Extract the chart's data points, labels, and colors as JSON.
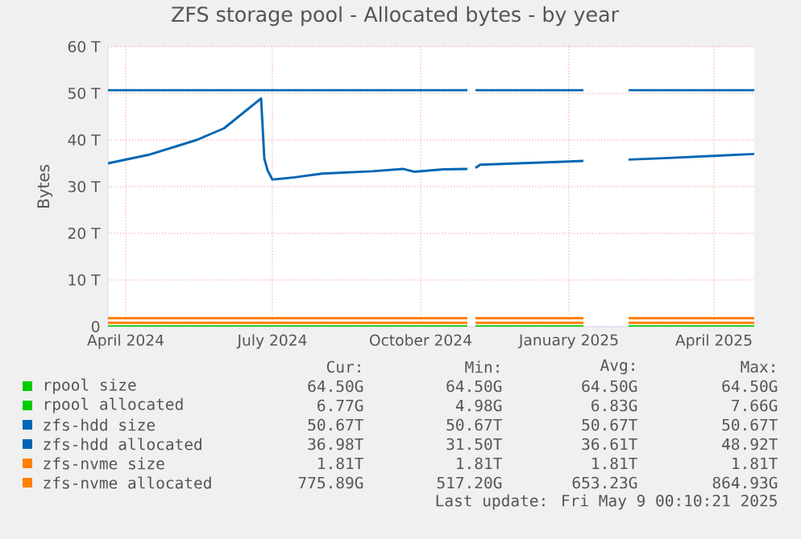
{
  "chart_data": {
    "type": "line",
    "title": "ZFS storage pool - Allocated bytes - by year",
    "ylabel": "Bytes",
    "xlim": [
      "2024-03-21",
      "2025-04-26"
    ],
    "ylim": [
      0,
      60
    ],
    "xticks": [
      {
        "value": "2024-04-01",
        "label": "April 2024"
      },
      {
        "value": "2024-07-01",
        "label": "July 2024"
      },
      {
        "value": "2024-10-01",
        "label": "October 2024"
      },
      {
        "value": "2025-01-01",
        "label": "January 2025"
      },
      {
        "value": "2025-04-01",
        "label": "April 2025"
      }
    ],
    "yticks": [
      0,
      {
        "value": 10,
        "label": "10 T"
      },
      {
        "value": 20,
        "label": "20 T"
      },
      {
        "value": 30,
        "label": "30 T"
      },
      {
        "value": 40,
        "label": "40 T"
      },
      {
        "value": 50,
        "label": "50 T"
      },
      {
        "value": 60,
        "label": "60 T"
      }
    ],
    "grid": true,
    "legend": "bottom",
    "marker": "none",
    "line_style": "solid",
    "series": [
      {
        "name": "rpool size",
        "color": "#00cc00",
        "x": [
          "2024-03-21",
          "2024-10-30",
          "2024-11-01",
          "2024-11-04",
          "2025-01-10",
          "2025-01-20",
          "2025-02-07",
          "2025-04-26"
        ],
        "values": [
          0.06,
          0.06,
          null,
          0.06,
          0.06,
          null,
          0.06,
          0.06
        ]
      },
      {
        "name": "rpool allocated",
        "color": "#00cc00",
        "x": [
          "2024-03-21",
          "2024-10-30",
          "2024-11-01",
          "2024-11-04",
          "2025-01-10",
          "2025-01-20",
          "2025-02-07",
          "2025-04-26"
        ],
        "values": [
          0.01,
          0.01,
          null,
          0.01,
          0.01,
          null,
          0.01,
          0.01
        ]
      },
      {
        "name": "zfs-hdd size",
        "color": "#0066b3",
        "x": [
          "2024-03-21",
          "2024-10-30",
          "2024-11-01",
          "2024-11-04",
          "2025-01-10",
          "2025-01-20",
          "2025-02-07",
          "2025-04-26"
        ],
        "values": [
          50.67,
          50.67,
          null,
          50.67,
          50.67,
          null,
          50.67,
          50.67
        ]
      },
      {
        "name": "zfs-hdd allocated",
        "color": "#0066b3",
        "x": [
          "2024-03-21",
          "2024-04-15",
          "2024-05-15",
          "2024-06-01",
          "2024-06-24",
          "2024-06-26",
          "2024-06-28",
          "2024-07-01",
          "2024-07-15",
          "2024-08-01",
          "2024-09-01",
          "2024-09-20",
          "2024-09-27",
          "2024-10-15",
          "2024-10-30",
          "2024-11-01",
          "2024-11-04",
          "2024-11-07",
          "2024-12-01",
          "2025-01-01",
          "2025-01-10",
          "2025-01-20",
          "2025-02-07",
          "2025-03-01",
          "2025-04-01",
          "2025-04-26"
        ],
        "values": [
          35.0,
          36.8,
          40.0,
          42.5,
          48.9,
          36.0,
          33.5,
          31.5,
          32.0,
          32.8,
          33.3,
          33.8,
          33.2,
          33.7,
          33.8,
          null,
          34.0,
          34.7,
          35.0,
          35.4,
          35.5,
          null,
          35.8,
          36.1,
          36.6,
          37.0
        ]
      },
      {
        "name": "zfs-nvme size",
        "color": "#ff8000",
        "x": [
          "2024-03-21",
          "2024-10-30",
          "2024-11-01",
          "2024-11-04",
          "2025-01-10",
          "2025-01-20",
          "2025-02-07",
          "2025-04-26"
        ],
        "values": [
          1.81,
          1.81,
          null,
          1.81,
          1.81,
          null,
          1.81,
          1.81
        ]
      },
      {
        "name": "zfs-nvme allocated",
        "color": "#ff8000",
        "x": [
          "2024-03-21",
          "2024-10-30",
          "2024-11-01",
          "2024-11-04",
          "2025-01-10",
          "2025-01-20",
          "2025-02-07",
          "2025-04-26"
        ],
        "values": [
          0.8,
          0.8,
          null,
          0.8,
          0.8,
          null,
          0.8,
          0.8
        ]
      }
    ],
    "annotations": [
      "Cur:",
      "Min:",
      "Avg:",
      "Max:",
      "64.50G",
      "64.50G",
      "64.50G",
      "64.50G",
      "6.77G",
      "4.98G",
      "6.83G",
      "7.66G",
      "50.67T",
      "50.67T",
      "50.67T",
      "50.67T",
      "36.98T",
      "31.50T",
      "36.61T",
      "48.92T",
      "1.81T",
      "1.81T",
      "1.81T",
      "1.81T",
      "775.89G",
      "517.20G",
      "653.23G",
      "864.93G",
      "Last update: Fri May  9 00:10:21 2025"
    ]
  }
}
